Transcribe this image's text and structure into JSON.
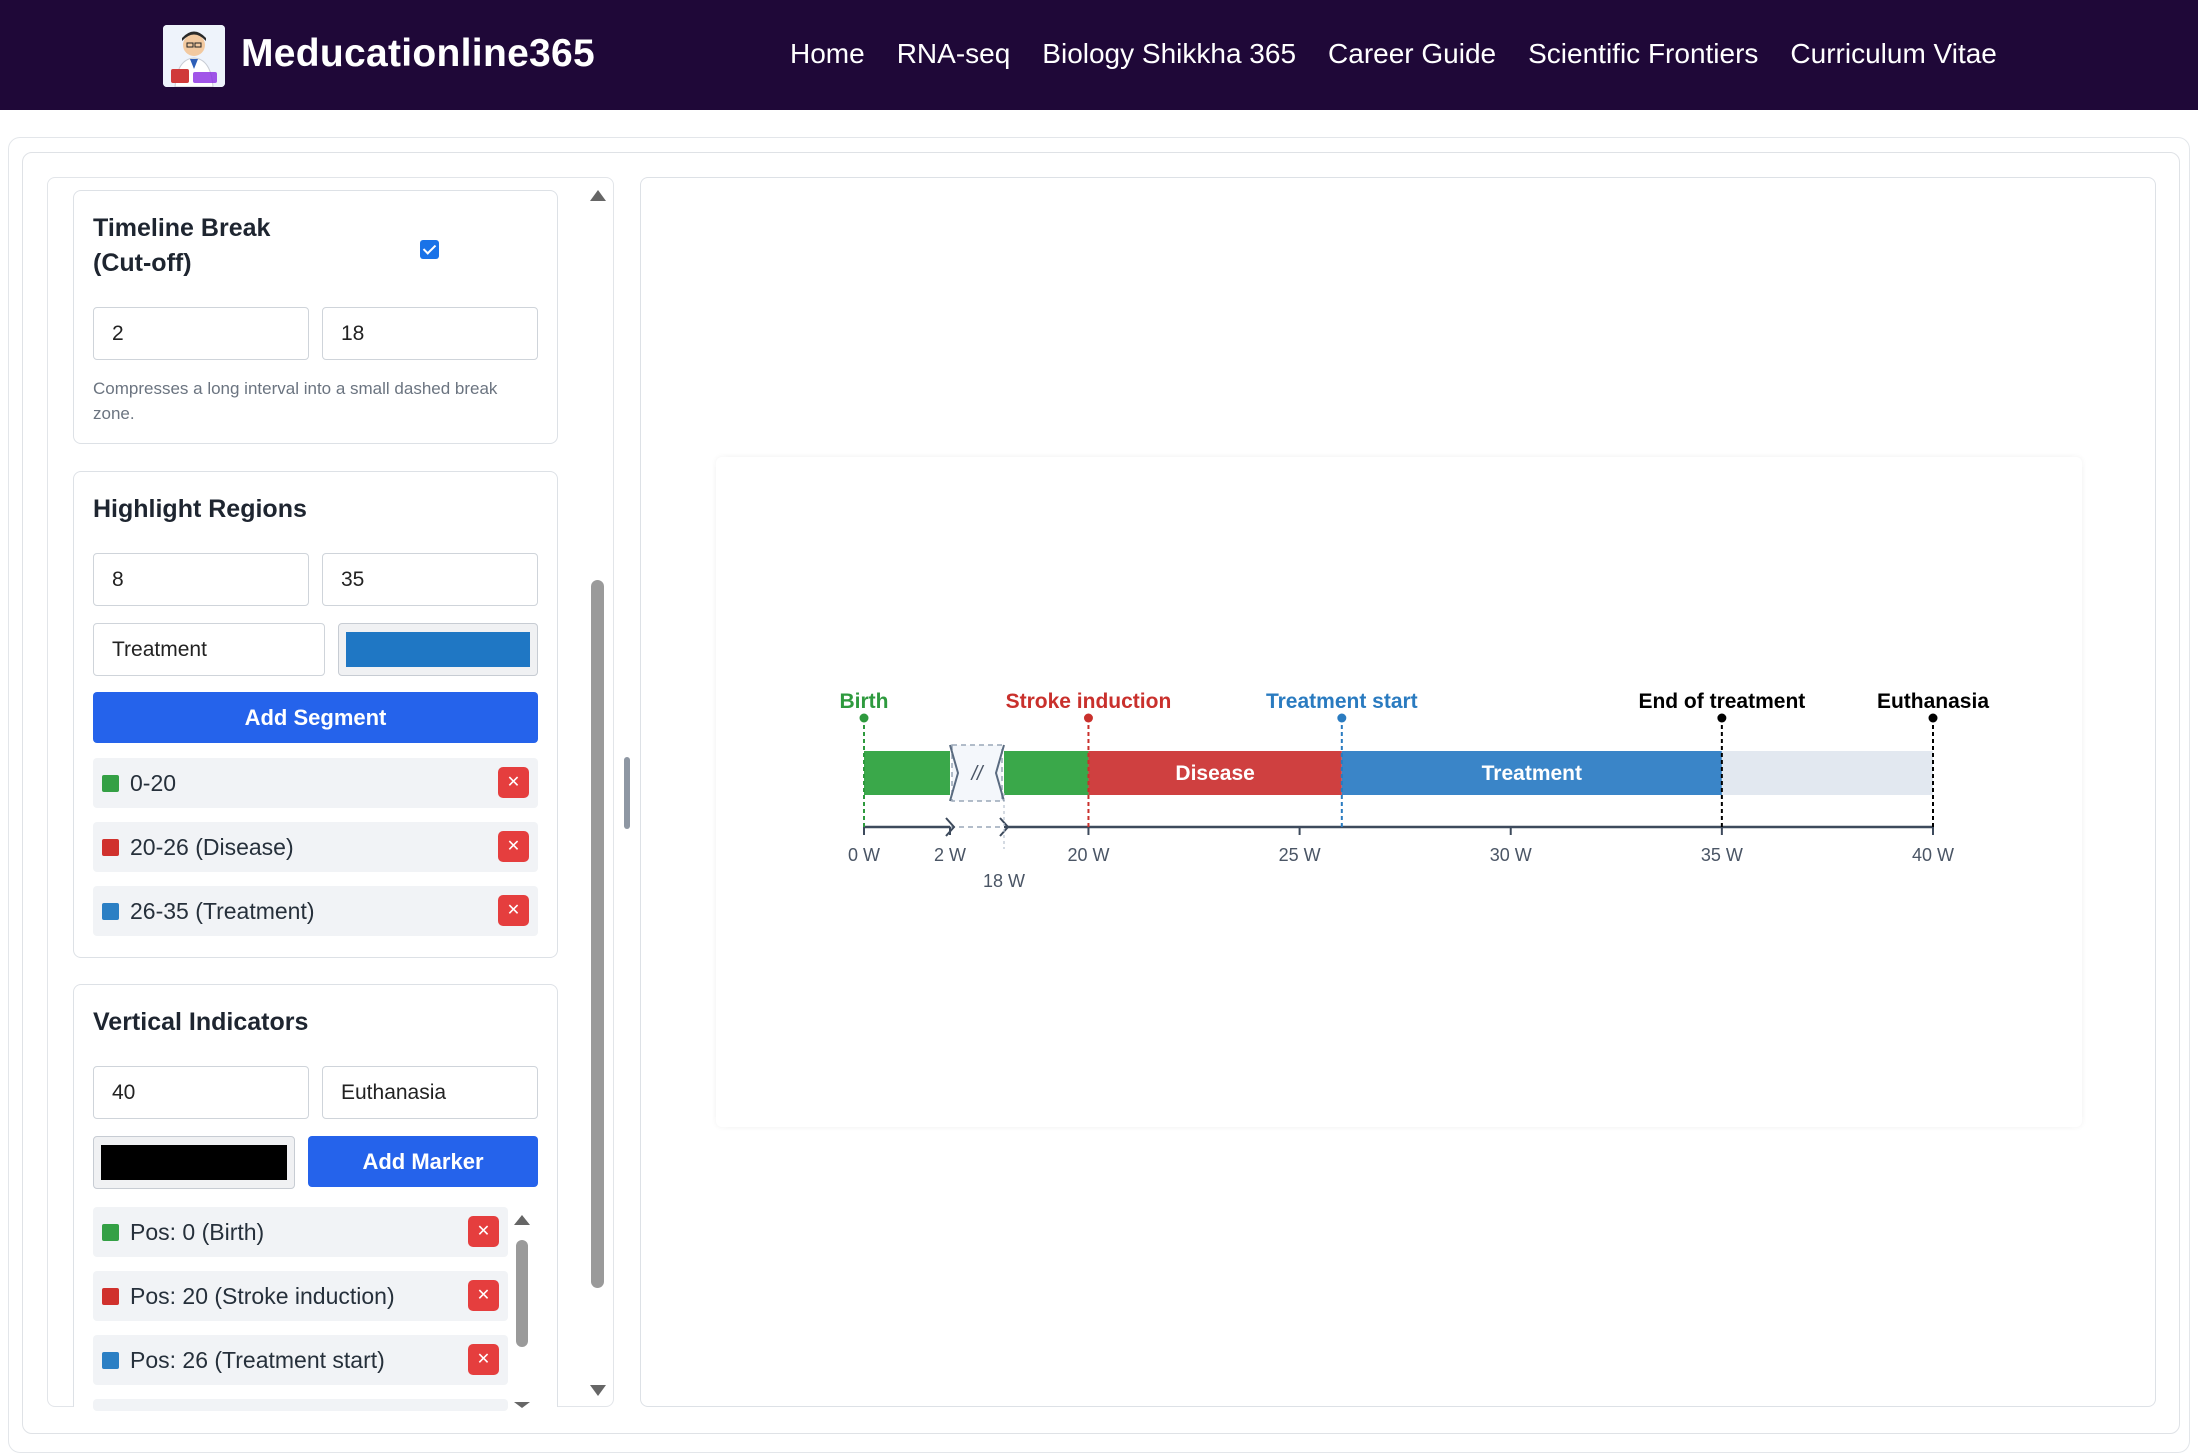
{
  "nav": {
    "brand": "Meducationline365",
    "links": [
      "Home",
      "RNA-seq",
      "Biology Shikkha 365",
      "Career Guide",
      "Scientific Frontiers",
      "Curriculum Vitae"
    ]
  },
  "timeline_break": {
    "title_line1": "Timeline Break",
    "title_line2": "(Cut-off)",
    "checked": true,
    "start": "2",
    "end": "18",
    "hint": "Compresses a long interval into a small dashed break zone."
  },
  "highlight_regions": {
    "title": "Highlight Regions",
    "start": "8",
    "end": "35",
    "label": "Treatment",
    "color": "#1f77c4",
    "add_button": "Add Segment",
    "items": [
      {
        "text": "0-20",
        "color": "#34a045"
      },
      {
        "text": "20-26 (Disease)",
        "color": "#d0312d"
      },
      {
        "text": "26-35 (Treatment)",
        "color": "#2b7fc4"
      }
    ]
  },
  "vertical_indicators": {
    "title": "Vertical Indicators",
    "position": "40",
    "label": "Euthanasia",
    "color": "#000000",
    "add_button": "Add Marker",
    "items": [
      {
        "text": "Pos: 0 (Birth)",
        "color": "#34a045"
      },
      {
        "text": "Pos: 20 (Stroke induction)",
        "color": "#d0312d"
      },
      {
        "text": "Pos: 26 (Treatment start)",
        "color": "#2b7fc4"
      }
    ]
  },
  "chart_data": {
    "type": "timeline",
    "unit": "W",
    "axis_range": [
      0,
      40
    ],
    "break": {
      "start": 2,
      "end": 18,
      "symbol": "//"
    },
    "ticks": [
      0,
      2,
      18,
      20,
      25,
      30,
      35,
      40
    ],
    "tick_labels": [
      "0 W",
      "2 W",
      "18 W",
      "20 W",
      "25 W",
      "30 W",
      "35 W",
      "40 W"
    ],
    "segments": [
      {
        "start": 0,
        "end": 20,
        "label": "",
        "color": "#3aa84a"
      },
      {
        "start": 20,
        "end": 26,
        "label": "Disease",
        "color": "#cf4040"
      },
      {
        "start": 26,
        "end": 35,
        "label": "Treatment",
        "color": "#3a85c8"
      },
      {
        "start": 35,
        "end": 40,
        "label": "",
        "color": "#e2e8f0"
      }
    ],
    "markers": [
      {
        "pos": 0,
        "label": "Birth",
        "color": "#2e9a3e"
      },
      {
        "pos": 20,
        "label": "Stroke induction",
        "color": "#c9302c"
      },
      {
        "pos": 26,
        "label": "Treatment start",
        "color": "#2a7bc0"
      },
      {
        "pos": 35,
        "label": "End of treatment",
        "color": "#000000"
      },
      {
        "pos": 40,
        "label": "Euthanasia",
        "color": "#000000"
      }
    ]
  }
}
